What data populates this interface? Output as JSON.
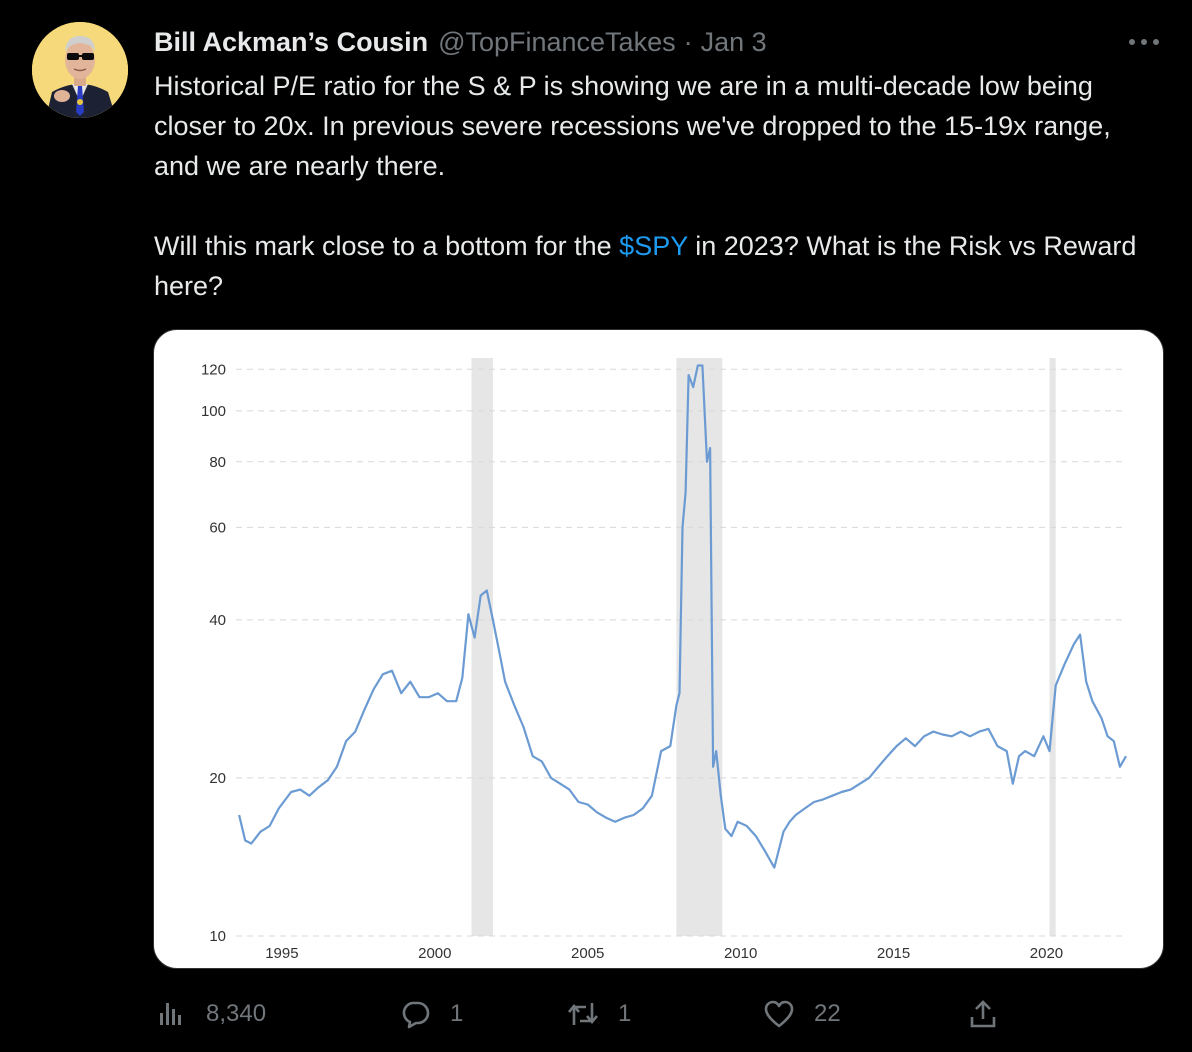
{
  "tweet": {
    "display_name": "Bill Ackman’s Cousin",
    "handle": "@TopFinanceTakes",
    "separator": "·",
    "date": "Jan 3",
    "more_icon": "more-horizontal-icon",
    "text_line1": "Historical P/E ratio for the S & P is showing we are in a multi-decade low being closer to 20x. In previous severe recessions we've dropped to the 15-19x range, and we are nearly there.",
    "text_line2_before": "Will this mark close to a bottom for the ",
    "cashtag": "$SPY",
    "text_line2_after": " in 2023? What is the Risk vs Reward here?",
    "link_color": "#1d9bf0"
  },
  "actions": {
    "views": {
      "icon": "views-chart-icon",
      "count": "8,340"
    },
    "reply": {
      "icon": "reply-icon",
      "count": "1"
    },
    "retweet": {
      "icon": "retweet-icon",
      "count": "1"
    },
    "like": {
      "icon": "heart-icon",
      "count": "22"
    },
    "share": {
      "icon": "share-icon"
    }
  },
  "chart_data": {
    "type": "line",
    "title": "",
    "xlabel": "",
    "ylabel": "",
    "y_scale": "log",
    "ylim": [
      10,
      125
    ],
    "xlim": [
      1993.5,
      2022.6
    ],
    "y_ticks": [
      10,
      20,
      40,
      60,
      80,
      100,
      120
    ],
    "x_ticks": [
      1995,
      2000,
      2005,
      2010,
      2015,
      2020
    ],
    "grid": "horizontal dashed",
    "line_color": "#6b9bd2",
    "recession_shading": [
      [
        2001.2,
        2001.9
      ],
      [
        2007.9,
        2009.4
      ],
      [
        2020.1,
        2020.3
      ]
    ],
    "series": [
      {
        "x": [
          1993.6,
          1993.8,
          1994.0,
          1994.3,
          1994.6,
          1994.9,
          1995.3,
          1995.6,
          1995.9,
          1996.2,
          1996.5,
          1996.8,
          1997.1,
          1997.4,
          1997.7,
          1998.0,
          1998.3,
          1998.6,
          1998.9,
          1999.2,
          1999.5,
          1999.8,
          2000.1,
          2000.4,
          2000.7,
          2000.9,
          2001.1,
          2001.3,
          2001.5,
          2001.7,
          2001.9,
          2002.1,
          2002.3,
          2002.6,
          2002.9,
          2003.2,
          2003.5,
          2003.8,
          2004.1,
          2004.4,
          2004.7,
          2005.0,
          2005.3,
          2005.6,
          2005.9,
          2006.2,
          2006.5,
          2006.8,
          2007.1,
          2007.4,
          2007.7,
          2007.9,
          2008.0,
          2008.1,
          2008.2,
          2008.3,
          2008.45,
          2008.6,
          2008.75,
          2008.9,
          2009.0,
          2009.1,
          2009.2,
          2009.35,
          2009.5,
          2009.7,
          2009.9,
          2010.2,
          2010.5,
          2010.8,
          2011.1,
          2011.4,
          2011.6,
          2011.8,
          2012.1,
          2012.4,
          2012.7,
          2013.0,
          2013.3,
          2013.6,
          2013.9,
          2014.2,
          2014.5,
          2014.8,
          2015.1,
          2015.4,
          2015.7,
          2016.0,
          2016.3,
          2016.6,
          2016.9,
          2017.2,
          2017.5,
          2017.8,
          2018.1,
          2018.4,
          2018.7,
          2018.9,
          2019.1,
          2019.3,
          2019.6,
          2019.9,
          2020.1,
          2020.3,
          2020.6,
          2020.9,
          2021.1,
          2021.3,
          2021.5,
          2021.8,
          2022.0,
          2022.2,
          2022.4,
          2022.6
        ],
        "values": [
          17.0,
          15.2,
          15.0,
          15.8,
          16.2,
          17.5,
          18.8,
          19.0,
          18.5,
          19.2,
          19.8,
          21.0,
          23.5,
          24.5,
          27.0,
          29.5,
          31.5,
          32.0,
          29.0,
          30.5,
          28.5,
          28.5,
          29.0,
          28.0,
          28.0,
          31.0,
          41.0,
          37.0,
          44.5,
          45.5,
          40.0,
          35.0,
          30.5,
          27.5,
          25.0,
          22.0,
          21.5,
          20.0,
          19.5,
          19.0,
          18.0,
          17.8,
          17.2,
          16.8,
          16.5,
          16.8,
          17.0,
          17.5,
          18.5,
          22.5,
          23.0,
          27.5,
          29.0,
          60.0,
          70.0,
          117.0,
          111.0,
          122.0,
          122.0,
          80.0,
          85.0,
          21.0,
          22.5,
          18.5,
          16.0,
          15.5,
          16.5,
          16.2,
          15.5,
          14.5,
          13.5,
          15.8,
          16.5,
          17.0,
          17.5,
          18.0,
          18.2,
          18.5,
          18.8,
          19.0,
          19.5,
          20.0,
          21.0,
          22.0,
          23.0,
          23.8,
          23.0,
          24.0,
          24.5,
          24.2,
          24.0,
          24.5,
          24.0,
          24.5,
          24.8,
          23.0,
          22.5,
          19.5,
          22.0,
          22.5,
          22.0,
          24.0,
          22.5,
          30.0,
          33.0,
          36.0,
          37.5,
          30.5,
          28.0,
          26.0,
          24.0,
          23.5,
          21.0,
          22.0
        ]
      }
    ]
  }
}
